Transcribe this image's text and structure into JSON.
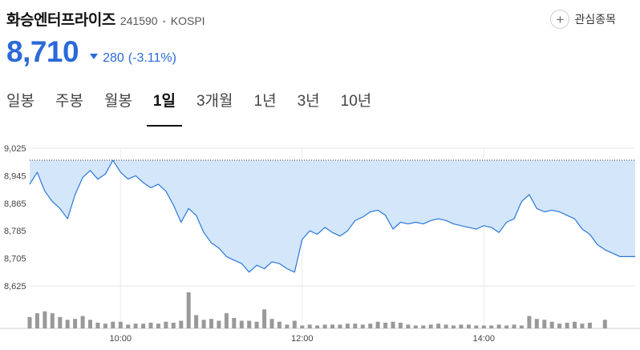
{
  "stock": {
    "name": "화승엔터프라이즈",
    "code": "241590",
    "separator": "•",
    "market": "KOSPI",
    "price": "8,710",
    "change": "280",
    "change_pct": "(-3.11%)",
    "direction": "down",
    "down_color": "#2a6ad8"
  },
  "watchlist": {
    "icon": "plus-icon",
    "label": "관심종목"
  },
  "tabs": [
    {
      "label": "일봉",
      "active": false
    },
    {
      "label": "주봉",
      "active": false
    },
    {
      "label": "월봉",
      "active": false
    },
    {
      "label": "1일",
      "active": true
    },
    {
      "label": "3개월",
      "active": false
    },
    {
      "label": "1년",
      "active": false
    },
    {
      "label": "3년",
      "active": false
    },
    {
      "label": "10년",
      "active": false
    }
  ],
  "chart_data": {
    "type": "area",
    "y_ticks": [
      "9,025",
      "8,945",
      "8,865",
      "8,785",
      "8,705",
      "8,625"
    ],
    "x_ticks": [
      "10:00",
      "12:00",
      "14:00"
    ],
    "ylim": [
      8625,
      9025
    ],
    "prev_close": 8990,
    "grid": true,
    "line_color": "#2a78d8",
    "fill_color": "#d4e6fa",
    "volume_color": "#999999",
    "price_series": [
      {
        "x": "09:00",
        "y": 8920
      },
      {
        "x": "09:05",
        "y": 8955
      },
      {
        "x": "09:10",
        "y": 8900
      },
      {
        "x": "09:15",
        "y": 8870
      },
      {
        "x": "09:20",
        "y": 8850
      },
      {
        "x": "09:25",
        "y": 8820
      },
      {
        "x": "09:30",
        "y": 8890
      },
      {
        "x": "09:35",
        "y": 8940
      },
      {
        "x": "09:40",
        "y": 8960
      },
      {
        "x": "09:45",
        "y": 8935
      },
      {
        "x": "09:50",
        "y": 8950
      },
      {
        "x": "09:55",
        "y": 8990
      },
      {
        "x": "10:00",
        "y": 8955
      },
      {
        "x": "10:05",
        "y": 8935
      },
      {
        "x": "10:10",
        "y": 8945
      },
      {
        "x": "10:15",
        "y": 8925
      },
      {
        "x": "10:20",
        "y": 8910
      },
      {
        "x": "10:25",
        "y": 8920
      },
      {
        "x": "10:30",
        "y": 8900
      },
      {
        "x": "10:35",
        "y": 8860
      },
      {
        "x": "10:40",
        "y": 8810
      },
      {
        "x": "10:45",
        "y": 8850
      },
      {
        "x": "10:50",
        "y": 8830
      },
      {
        "x": "10:55",
        "y": 8780
      },
      {
        "x": "11:00",
        "y": 8750
      },
      {
        "x": "11:05",
        "y": 8735
      },
      {
        "x": "11:10",
        "y": 8710
      },
      {
        "x": "11:15",
        "y": 8700
      },
      {
        "x": "11:20",
        "y": 8690
      },
      {
        "x": "11:25",
        "y": 8665
      },
      {
        "x": "11:30",
        "y": 8685
      },
      {
        "x": "11:35",
        "y": 8675
      },
      {
        "x": "11:40",
        "y": 8695
      },
      {
        "x": "11:45",
        "y": 8690
      },
      {
        "x": "11:50",
        "y": 8675
      },
      {
        "x": "11:55",
        "y": 8665
      },
      {
        "x": "12:00",
        "y": 8760
      },
      {
        "x": "12:05",
        "y": 8785
      },
      {
        "x": "12:10",
        "y": 8775
      },
      {
        "x": "12:15",
        "y": 8795
      },
      {
        "x": "12:20",
        "y": 8780
      },
      {
        "x": "12:25",
        "y": 8770
      },
      {
        "x": "12:30",
        "y": 8785
      },
      {
        "x": "12:35",
        "y": 8815
      },
      {
        "x": "12:40",
        "y": 8825
      },
      {
        "x": "12:45",
        "y": 8840
      },
      {
        "x": "12:50",
        "y": 8845
      },
      {
        "x": "12:55",
        "y": 8830
      },
      {
        "x": "13:00",
        "y": 8790
      },
      {
        "x": "13:05",
        "y": 8810
      },
      {
        "x": "13:10",
        "y": 8805
      },
      {
        "x": "13:15",
        "y": 8810
      },
      {
        "x": "13:20",
        "y": 8805
      },
      {
        "x": "13:25",
        "y": 8815
      },
      {
        "x": "13:30",
        "y": 8820
      },
      {
        "x": "13:35",
        "y": 8815
      },
      {
        "x": "13:40",
        "y": 8805
      },
      {
        "x": "13:45",
        "y": 8800
      },
      {
        "x": "13:50",
        "y": 8795
      },
      {
        "x": "13:55",
        "y": 8790
      },
      {
        "x": "14:00",
        "y": 8800
      },
      {
        "x": "14:05",
        "y": 8795
      },
      {
        "x": "14:10",
        "y": 8780
      },
      {
        "x": "14:15",
        "y": 8810
      },
      {
        "x": "14:20",
        "y": 8820
      },
      {
        "x": "14:25",
        "y": 8870
      },
      {
        "x": "14:30",
        "y": 8890
      },
      {
        "x": "14:35",
        "y": 8850
      },
      {
        "x": "14:40",
        "y": 8840
      },
      {
        "x": "14:45",
        "y": 8845
      },
      {
        "x": "14:50",
        "y": 8840
      },
      {
        "x": "14:55",
        "y": 8830
      },
      {
        "x": "15:00",
        "y": 8820
      },
      {
        "x": "15:05",
        "y": 8790
      },
      {
        "x": "15:10",
        "y": 8775
      },
      {
        "x": "15:15",
        "y": 8745
      },
      {
        "x": "15:20",
        "y": 8730
      },
      {
        "x": "15:30",
        "y": 8710
      },
      {
        "x": "15:40",
        "y": 8710
      }
    ],
    "volume": [
      {
        "x": "09:00",
        "v": 12
      },
      {
        "x": "09:05",
        "v": 16
      },
      {
        "x": "09:10",
        "v": 18
      },
      {
        "x": "09:15",
        "v": 16
      },
      {
        "x": "09:20",
        "v": 12
      },
      {
        "x": "09:25",
        "v": 9
      },
      {
        "x": "09:30",
        "v": 10
      },
      {
        "x": "09:35",
        "v": 13
      },
      {
        "x": "09:40",
        "v": 9
      },
      {
        "x": "09:45",
        "v": 6
      },
      {
        "x": "09:50",
        "v": 5
      },
      {
        "x": "09:55",
        "v": 7
      },
      {
        "x": "10:00",
        "v": 7
      },
      {
        "x": "10:05",
        "v": 4
      },
      {
        "x": "10:10",
        "v": 5
      },
      {
        "x": "10:15",
        "v": 5
      },
      {
        "x": "10:20",
        "v": 6
      },
      {
        "x": "10:25",
        "v": 5
      },
      {
        "x": "10:30",
        "v": 7
      },
      {
        "x": "10:35",
        "v": 6
      },
      {
        "x": "10:40",
        "v": 8
      },
      {
        "x": "10:45",
        "v": 38
      },
      {
        "x": "10:50",
        "v": 14
      },
      {
        "x": "10:55",
        "v": 9
      },
      {
        "x": "11:00",
        "v": 10
      },
      {
        "x": "11:05",
        "v": 8
      },
      {
        "x": "11:10",
        "v": 16
      },
      {
        "x": "11:15",
        "v": 11
      },
      {
        "x": "11:20",
        "v": 8
      },
      {
        "x": "11:25",
        "v": 8
      },
      {
        "x": "11:30",
        "v": 7
      },
      {
        "x": "11:35",
        "v": 20
      },
      {
        "x": "11:40",
        "v": 10
      },
      {
        "x": "11:45",
        "v": 7
      },
      {
        "x": "11:50",
        "v": 4
      },
      {
        "x": "11:55",
        "v": 8
      },
      {
        "x": "12:00",
        "v": 3
      },
      {
        "x": "12:05",
        "v": 4
      },
      {
        "x": "12:10",
        "v": 3
      },
      {
        "x": "12:15",
        "v": 4
      },
      {
        "x": "12:20",
        "v": 4
      },
      {
        "x": "12:25",
        "v": 4
      },
      {
        "x": "12:30",
        "v": 5
      },
      {
        "x": "12:35",
        "v": 5
      },
      {
        "x": "12:40",
        "v": 4
      },
      {
        "x": "12:45",
        "v": 5
      },
      {
        "x": "12:50",
        "v": 7
      },
      {
        "x": "12:55",
        "v": 6
      },
      {
        "x": "13:00",
        "v": 7
      },
      {
        "x": "13:05",
        "v": 6
      },
      {
        "x": "13:10",
        "v": 4
      },
      {
        "x": "13:15",
        "v": 3
      },
      {
        "x": "13:20",
        "v": 3
      },
      {
        "x": "13:25",
        "v": 4
      },
      {
        "x": "13:30",
        "v": 5
      },
      {
        "x": "13:35",
        "v": 4
      },
      {
        "x": "13:40",
        "v": 3
      },
      {
        "x": "13:45",
        "v": 4
      },
      {
        "x": "13:50",
        "v": 4
      },
      {
        "x": "13:55",
        "v": 3
      },
      {
        "x": "14:00",
        "v": 3
      },
      {
        "x": "14:05",
        "v": 3
      },
      {
        "x": "14:10",
        "v": 4
      },
      {
        "x": "14:15",
        "v": 3
      },
      {
        "x": "14:20",
        "v": 4
      },
      {
        "x": "14:25",
        "v": 3
      },
      {
        "x": "14:30",
        "v": 13
      },
      {
        "x": "14:35",
        "v": 10
      },
      {
        "x": "14:40",
        "v": 9
      },
      {
        "x": "14:45",
        "v": 7
      },
      {
        "x": "14:50",
        "v": 5
      },
      {
        "x": "14:55",
        "v": 6
      },
      {
        "x": "15:00",
        "v": 7
      },
      {
        "x": "15:05",
        "v": 5
      },
      {
        "x": "15:10",
        "v": 6
      },
      {
        "x": "15:20",
        "v": 9
      }
    ]
  }
}
